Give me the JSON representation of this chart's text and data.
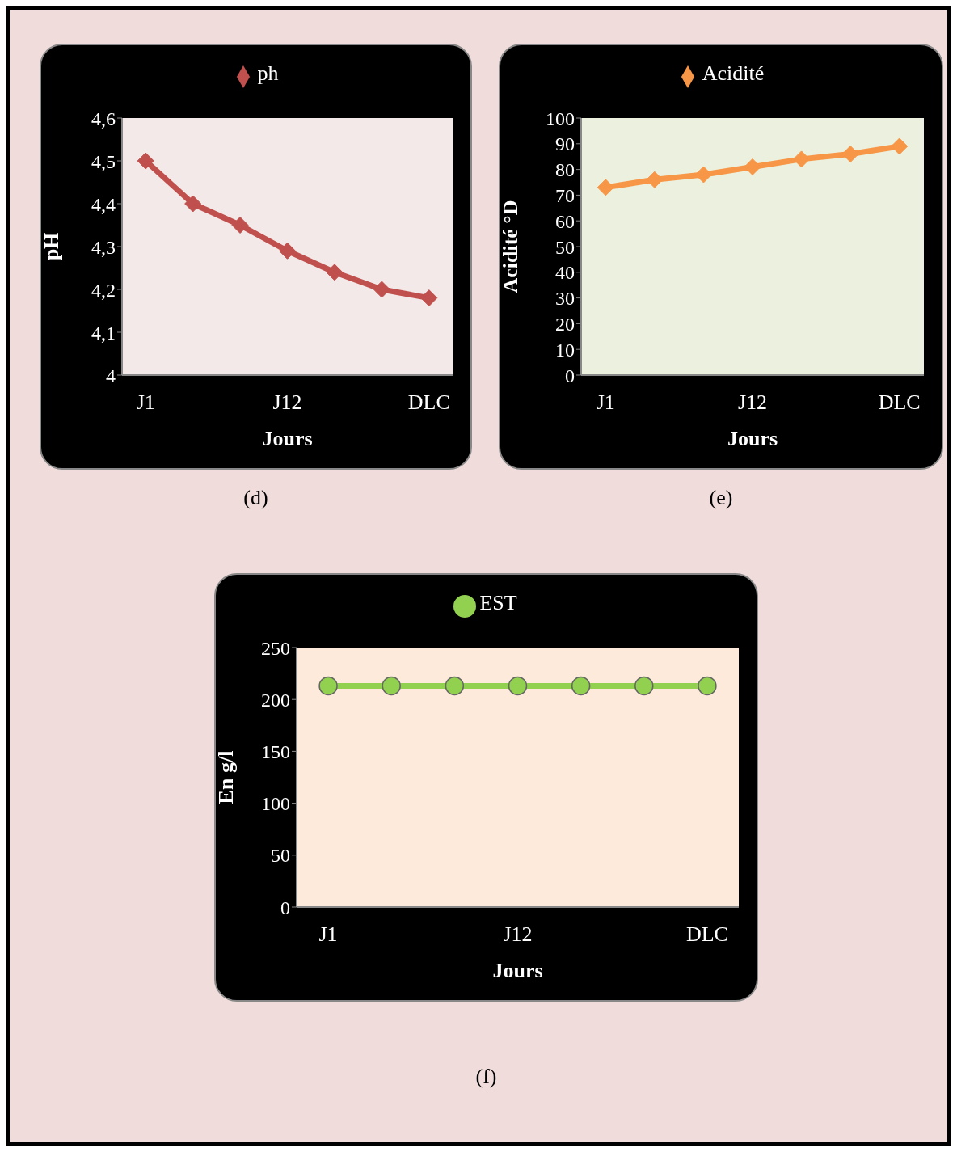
{
  "chart_data": [
    {
      "type": "line",
      "xlabel": "Jours",
      "ylabel": "pH",
      "categories": [
        "J1",
        null,
        null,
        "J12",
        null,
        null,
        "DLC"
      ],
      "series": [
        {
          "name": "ph",
          "color": "#c0504d",
          "values": [
            4.5,
            4.4,
            4.35,
            4.29,
            4.24,
            4.2,
            4.18
          ]
        }
      ],
      "ylim": [
        4,
        4.6
      ],
      "yticks": [
        {
          "value": 4,
          "label": "4"
        },
        {
          "value": 4.1,
          "label": "4,1"
        },
        {
          "value": 4.2,
          "label": "4,2"
        },
        {
          "value": 4.3,
          "label": "4,3"
        },
        {
          "value": 4.4,
          "label": "4,4"
        },
        {
          "value": 4.5,
          "label": "4,5"
        },
        {
          "value": 4.6,
          "label": "4,6"
        }
      ],
      "marker": "diamond",
      "legend": "top",
      "grid": false,
      "annotations": [
        "(d)"
      ]
    },
    {
      "type": "line",
      "xlabel": "Jours",
      "ylabel": "Acidité °D",
      "categories": [
        "J1",
        null,
        null,
        "J12",
        null,
        null,
        "DLC"
      ],
      "series": [
        {
          "name": "Acidité",
          "color": "#f79646",
          "values": [
            73,
            76,
            78,
            81,
            84,
            86,
            89
          ]
        }
      ],
      "ylim": [
        0,
        100
      ],
      "yticks": [
        0,
        10,
        20,
        30,
        40,
        50,
        60,
        70,
        80,
        90,
        100
      ],
      "marker": "diamond",
      "legend": "top",
      "grid": false,
      "annotations": [
        "(e)"
      ]
    },
    {
      "type": "line",
      "xlabel": "Jours",
      "ylabel": "En g/l",
      "categories": [
        "J1",
        null,
        null,
        "J12",
        null,
        null,
        "DLC"
      ],
      "series": [
        {
          "name": "EST",
          "color": "#92d050",
          "values": [
            213,
            213,
            213,
            213,
            213,
            213,
            213
          ]
        }
      ],
      "ylim": [
        0,
        250
      ],
      "yticks": [
        0,
        50,
        100,
        150,
        200,
        250
      ],
      "marker": "circle",
      "legend": "top",
      "grid": false,
      "annotations": [
        "(f)"
      ]
    }
  ]
}
